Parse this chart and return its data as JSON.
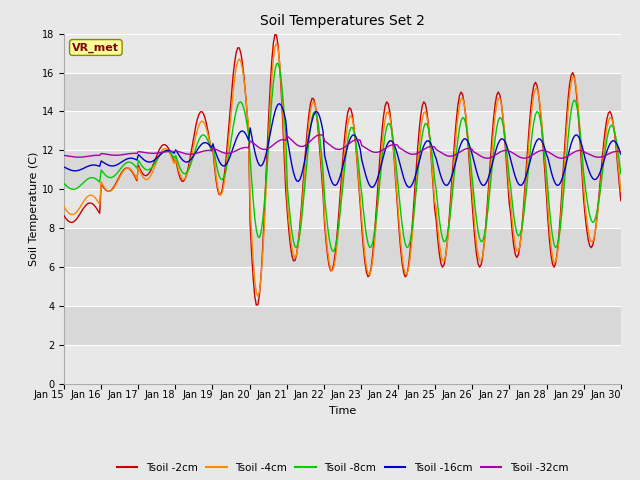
{
  "title": "Soil Temperatures Set 2",
  "xlabel": "Time",
  "ylabel": "Soil Temperature (C)",
  "ylim": [
    0,
    18
  ],
  "yticks": [
    0,
    2,
    4,
    6,
    8,
    10,
    12,
    14,
    16,
    18
  ],
  "x_tick_labels": [
    "Jan 15",
    "Jan 16",
    "Jan 17",
    "Jan 18",
    "Jan 19",
    "Jan 20",
    "Jan 21",
    "Jan 22",
    "Jan 23",
    "Jan 24",
    "Jan 25",
    "Jan 26",
    "Jan 27",
    "Jan 28",
    "Jan 29",
    "Jan 30"
  ],
  "series_colors": {
    "Tsoil -2cm": "#cc0000",
    "Tsoil -4cm": "#ff8800",
    "Tsoil -8cm": "#00cc00",
    "Tsoil -16cm": "#0000cc",
    "Tsoil -32cm": "#aa00aa"
  },
  "legend_label": "VR_met",
  "fig_bg_color": "#e8e8e8",
  "plot_bg_color": "#d8d8d8",
  "band_light_color": "#e8e8e8",
  "band_dark_color": "#d8d8d8",
  "annotation_box_color": "#ffff99",
  "annotation_text_color": "#880000",
  "annotation_edge_color": "#888800"
}
